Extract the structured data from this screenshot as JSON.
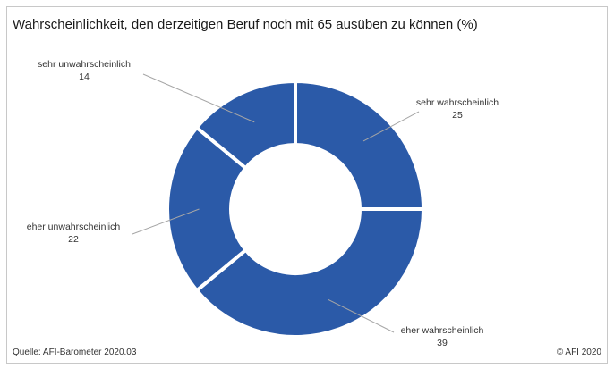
{
  "title": "Wahrscheinlichkeit, den derzeitigen Beruf noch mit 65 ausüben zu können (%)",
  "source": "Quelle: AFI-Barometer 2020.03",
  "copyright": "© AFI 2020",
  "colors": {
    "slice": "#2b5aa8",
    "separator": "#ffffff",
    "leader": "#a6a6a6"
  },
  "chart_data": {
    "type": "pie",
    "donut": true,
    "title": "Wahrscheinlichkeit, den derzeitigen Beruf noch mit 65 ausüben zu können (%)",
    "categories": [
      "sehr wahrscheinlich",
      "eher wahrscheinlich",
      "eher unwahrscheinlich",
      "sehr unwahrscheinlich"
    ],
    "values": [
      25,
      39,
      22,
      14
    ]
  }
}
